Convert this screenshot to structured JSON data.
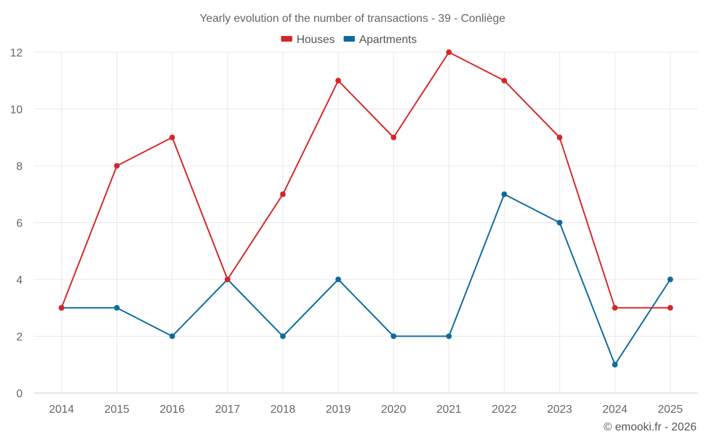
{
  "chart_data": {
    "type": "line",
    "title": "Yearly evolution of the number of transactions - 39 - Conliège",
    "xlabel": "",
    "ylabel": "",
    "categories": [
      "2014",
      "2015",
      "2016",
      "2017",
      "2018",
      "2019",
      "2020",
      "2021",
      "2022",
      "2023",
      "2024",
      "2025"
    ],
    "series": [
      {
        "name": "Houses",
        "color": "#d62728",
        "values": [
          3,
          8,
          9,
          4,
          7,
          11,
          9,
          12,
          11,
          9,
          3,
          3
        ]
      },
      {
        "name": "Apartments",
        "color": "#0e6b9e",
        "values": [
          3,
          3,
          2,
          4,
          2,
          4,
          2,
          2,
          7,
          6,
          1,
          4
        ]
      }
    ],
    "ylim": [
      0,
      12
    ],
    "yticks": [
      0,
      2,
      4,
      6,
      8,
      10,
      12
    ],
    "grid": true,
    "legend": "top-center"
  },
  "credit": "© emooki.fr - 2026"
}
